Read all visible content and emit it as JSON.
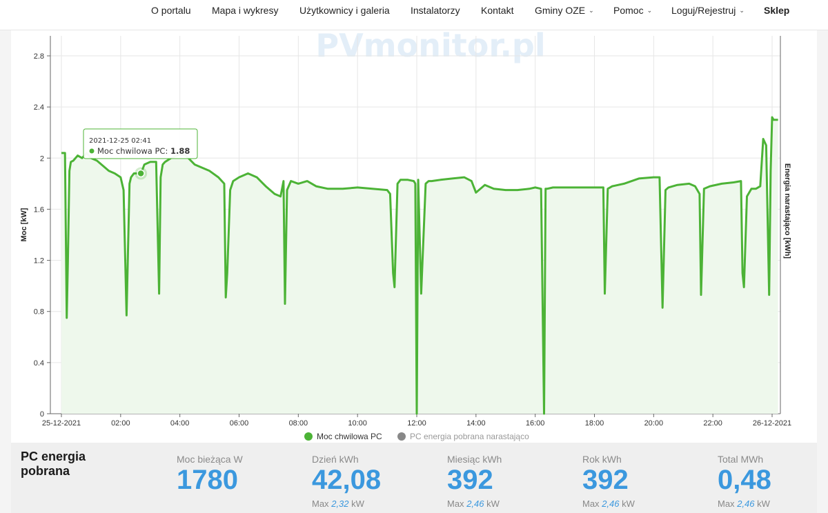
{
  "nav": {
    "items": [
      {
        "label": "O portalu",
        "dropdown": false,
        "bold": false
      },
      {
        "label": "Mapa i wykresy",
        "dropdown": false,
        "bold": false
      },
      {
        "label": "Użytkownicy i galeria",
        "dropdown": false,
        "bold": false
      },
      {
        "label": "Instalatorzy",
        "dropdown": false,
        "bold": false
      },
      {
        "label": "Kontakt",
        "dropdown": false,
        "bold": false
      },
      {
        "label": "Gminy OZE",
        "dropdown": true,
        "bold": false
      },
      {
        "label": "Pomoc",
        "dropdown": true,
        "bold": false
      },
      {
        "label": "Loguj/Rejestruj",
        "dropdown": true,
        "bold": false
      },
      {
        "label": "Sklep",
        "dropdown": false,
        "bold": true
      }
    ]
  },
  "chart_data": {
    "type": "line",
    "watermark": "PVmonitor.pl",
    "ylabel": "Moc [kW]",
    "y2label": "Energia narastająco [kWh]",
    "ylim": [
      0,
      2.8
    ],
    "yticks": [
      "0",
      "0.4",
      "0.8",
      "1.2",
      "1.6",
      "2",
      "2.4",
      "2.8"
    ],
    "xlim_hours": [
      0,
      24
    ],
    "xticks": [
      "25-12-2021",
      "02:00",
      "04:00",
      "06:00",
      "08:00",
      "10:00",
      "12:00",
      "14:00",
      "16:00",
      "18:00",
      "20:00",
      "22:00",
      "26-12-2021"
    ],
    "grid": true,
    "legend_position": "bottom-center",
    "series": [
      {
        "name": "Moc chwilowa PC",
        "color": "#4cb336",
        "x_hours": [
          0.0,
          0.12,
          0.18,
          0.22,
          0.27,
          0.32,
          0.4,
          0.55,
          0.7,
          0.85,
          1.0,
          1.2,
          1.4,
          1.6,
          1.8,
          2.0,
          2.1,
          2.2,
          2.25,
          2.3,
          2.35,
          2.45,
          2.6,
          2.69,
          2.8,
          3.0,
          3.2,
          3.3,
          3.35,
          3.42,
          3.5,
          3.7,
          4.0,
          4.2,
          4.5,
          5.0,
          5.3,
          5.5,
          5.55,
          5.6,
          5.7,
          5.8,
          6.0,
          6.3,
          6.6,
          6.9,
          7.2,
          7.4,
          7.5,
          7.55,
          7.62,
          7.75,
          8.0,
          8.3,
          8.6,
          9.0,
          9.5,
          10.0,
          10.5,
          11.0,
          11.1,
          11.2,
          11.25,
          11.35,
          11.45,
          11.7,
          11.9,
          11.95,
          12.0,
          12.05,
          12.15,
          12.3,
          12.4,
          12.5,
          12.8,
          13.2,
          13.6,
          13.85,
          14.0,
          14.3,
          14.6,
          15.0,
          15.4,
          15.8,
          16.0,
          16.2,
          16.3,
          16.35,
          16.4,
          16.6,
          17.0,
          17.5,
          18.0,
          18.3,
          18.35,
          18.45,
          18.6,
          19.0,
          19.5,
          20.0,
          20.2,
          20.3,
          20.4,
          20.5,
          20.8,
          21.2,
          21.4,
          21.55,
          21.6,
          21.7,
          21.9,
          22.3,
          22.7,
          22.95,
          23.0,
          23.05,
          23.15,
          23.3,
          23.45,
          23.6,
          23.7,
          23.8,
          23.9,
          23.95,
          24.0,
          24.05,
          24.15,
          24.2
        ],
        "y_kw": [
          2.04,
          2.04,
          0.75,
          1.2,
          1.9,
          1.97,
          1.98,
          2.02,
          2.0,
          2.04,
          2.0,
          1.98,
          1.94,
          1.9,
          1.88,
          1.85,
          1.75,
          0.77,
          1.3,
          1.8,
          1.85,
          1.88,
          1.88,
          1.88,
          1.95,
          1.97,
          1.97,
          0.94,
          1.85,
          1.95,
          1.97,
          2.0,
          2.03,
          2.02,
          1.95,
          1.9,
          1.85,
          1.8,
          0.91,
          1.1,
          1.75,
          1.82,
          1.85,
          1.88,
          1.85,
          1.78,
          1.72,
          1.7,
          1.82,
          0.86,
          1.75,
          1.82,
          1.8,
          1.82,
          1.78,
          1.76,
          1.76,
          1.77,
          1.76,
          1.75,
          1.72,
          1.1,
          0.99,
          1.8,
          1.83,
          1.83,
          1.82,
          1.8,
          0.0,
          1.83,
          0.94,
          1.8,
          1.82,
          1.82,
          1.83,
          1.84,
          1.85,
          1.82,
          1.73,
          1.79,
          1.76,
          1.75,
          1.75,
          1.76,
          1.77,
          1.76,
          0.0,
          1.76,
          1.76,
          1.77,
          1.77,
          1.77,
          1.77,
          1.77,
          0.94,
          1.76,
          1.78,
          1.8,
          1.84,
          1.85,
          1.85,
          0.83,
          1.75,
          1.77,
          1.79,
          1.8,
          1.78,
          1.72,
          0.93,
          1.76,
          1.78,
          1.8,
          1.81,
          1.82,
          1.1,
          0.99,
          1.7,
          1.76,
          1.76,
          1.78,
          2.15,
          2.1,
          0.93,
          1.9,
          2.32,
          2.3,
          2.3,
          2.3
        ]
      },
      {
        "name": "PC energia pobrana narastająco",
        "color": "#888888",
        "hidden": true
      }
    ],
    "tooltip": {
      "time": "2021-12-25 02:41",
      "series": "Moc chwilowa PC",
      "value": "1.88",
      "x_hours": 2.683,
      "y_kw": 1.88
    }
  },
  "stats": {
    "title": "PC energia pobrana",
    "items": [
      {
        "label": "Moc bieżąca W",
        "value": "1780",
        "max_prefix": "",
        "max_value": "",
        "max_unit": ""
      },
      {
        "label": "Dzień kWh",
        "value": "42,08",
        "max_prefix": "Max",
        "max_value": "2,32",
        "max_unit": "kW"
      },
      {
        "label": "Miesiąc kWh",
        "value": "392",
        "max_prefix": "Max",
        "max_value": "2,46",
        "max_unit": "kW"
      },
      {
        "label": "Rok kWh",
        "value": "392",
        "max_prefix": "Max",
        "max_value": "2,46",
        "max_unit": "kW"
      },
      {
        "label": "Total MWh",
        "value": "0,48",
        "max_prefix": "Max",
        "max_value": "2,46",
        "max_unit": "kW"
      }
    ]
  }
}
